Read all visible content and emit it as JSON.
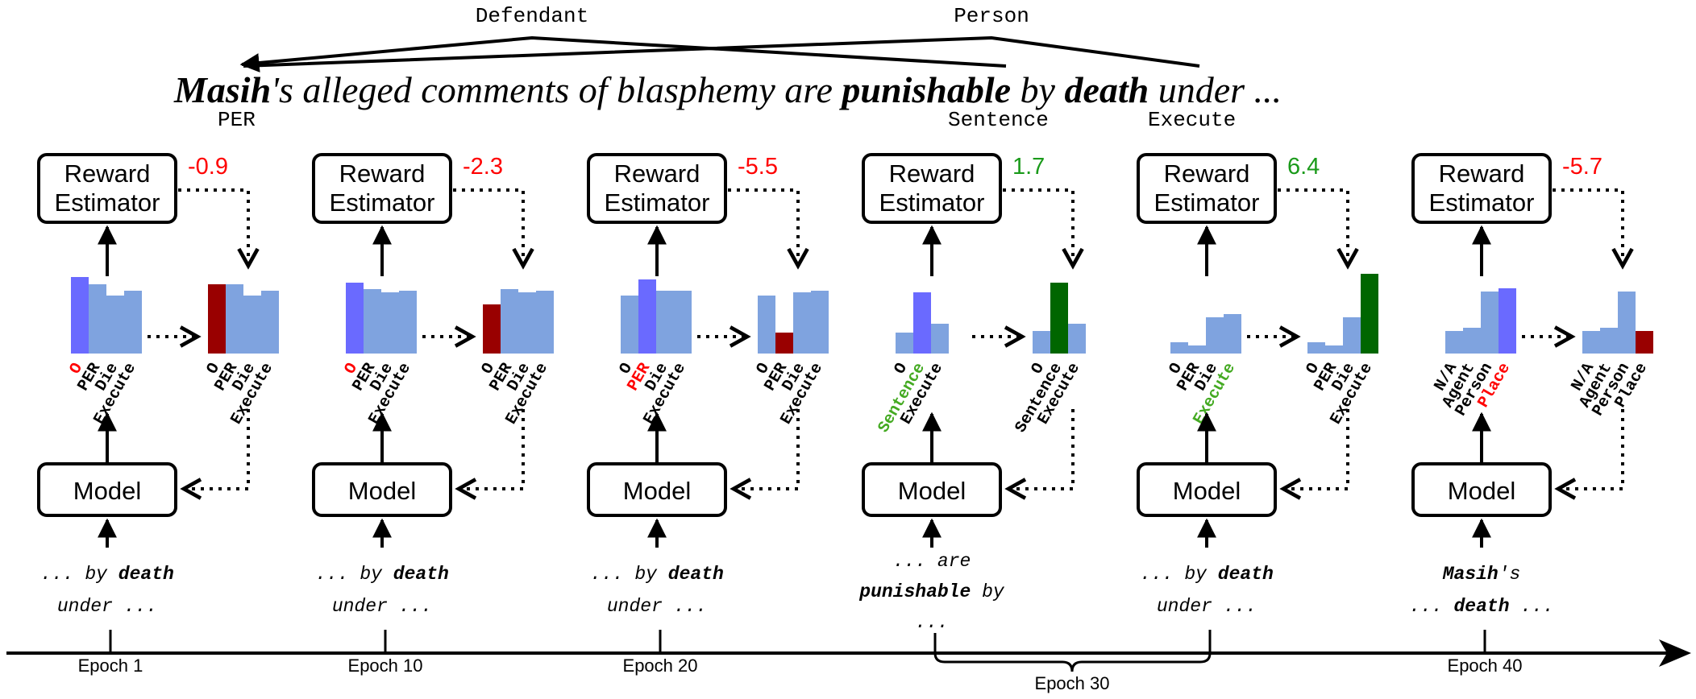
{
  "colors": {
    "bar_default": "#7fa3df",
    "bar_selected": "#6a6aff",
    "bar_negative": "#990000",
    "bar_positive": "#006600",
    "reward_negative": "#ff0000",
    "reward_positive": "#1a9a1a",
    "label_red": "#ff0000",
    "label_green": "#44aa22",
    "ink": "#000000"
  },
  "sentence": {
    "parts": [
      {
        "text": "Masih",
        "style": "bold"
      },
      {
        "text": "'s alleged comments of blasphemy are ",
        "style": "normal"
      },
      {
        "text": "punishable",
        "style": "bold"
      },
      {
        "text": " by ",
        "style": "normal"
      },
      {
        "text": "death",
        "style": "bold"
      },
      {
        "text": " under ...",
        "style": "normal"
      }
    ],
    "arc_labels": [
      "Defendant",
      "Person"
    ],
    "tags": [
      "PER",
      "Sentence",
      "Execute"
    ]
  },
  "panels": [
    {
      "reward": {
        "text": "-0.9",
        "sign": "negative"
      },
      "box_top": "Reward\nEstimator",
      "box_bottom": "Model",
      "left_chart": {
        "values": [
          0.95,
          0.86,
          0.72,
          0.78
        ],
        "labels": [
          "O",
          "PER",
          "Die",
          "Execute"
        ],
        "highlight": 0,
        "highlight_color": "selected",
        "label_colors": [
          "red",
          "ink",
          "ink",
          "ink"
        ]
      },
      "right_chart": {
        "values": [
          0.86,
          0.86,
          0.72,
          0.78
        ],
        "labels": [
          "O",
          "PER",
          "Die",
          "Execute"
        ],
        "highlight": 0,
        "highlight_color": "negative"
      },
      "input_lines": [
        [
          {
            "text": "... by ",
            "style": "italic"
          },
          {
            "text": "death",
            "style": "bold"
          }
        ],
        [
          {
            "text": "under ...",
            "style": "italic"
          }
        ]
      ]
    },
    {
      "reward": {
        "text": "-2.3",
        "sign": "negative"
      },
      "box_top": "Reward\nEstimator",
      "box_bottom": "Model",
      "left_chart": {
        "values": [
          0.88,
          0.8,
          0.76,
          0.78
        ],
        "labels": [
          "O",
          "PER",
          "Die",
          "Execute"
        ],
        "highlight": 0,
        "highlight_color": "selected",
        "label_colors": [
          "red",
          "ink",
          "ink",
          "ink"
        ]
      },
      "right_chart": {
        "values": [
          0.61,
          0.8,
          0.76,
          0.78
        ],
        "labels": [
          "O",
          "PER",
          "Die",
          "Execute"
        ],
        "highlight": 0,
        "highlight_color": "negative"
      },
      "input_lines": [
        [
          {
            "text": "... by ",
            "style": "italic"
          },
          {
            "text": "death",
            "style": "bold"
          }
        ],
        [
          {
            "text": "under ...",
            "style": "italic"
          }
        ]
      ]
    },
    {
      "reward": {
        "text": "-5.5",
        "sign": "negative"
      },
      "box_top": "Reward\nEstimator",
      "box_bottom": "Model",
      "left_chart": {
        "values": [
          0.72,
          0.92,
          0.78,
          0.78
        ],
        "labels": [
          "O",
          "PER",
          "Die",
          "Execute"
        ],
        "highlight": 1,
        "highlight_color": "selected",
        "label_colors": [
          "ink",
          "red",
          "ink",
          "ink"
        ]
      },
      "right_chart": {
        "values": [
          0.72,
          0.26,
          0.76,
          0.78
        ],
        "labels": [
          "O",
          "PER",
          "Die",
          "Execute"
        ],
        "highlight": 1,
        "highlight_color": "negative"
      },
      "input_lines": [
        [
          {
            "text": "... by ",
            "style": "italic"
          },
          {
            "text": "death",
            "style": "bold"
          }
        ],
        [
          {
            "text": "under ...",
            "style": "italic"
          }
        ]
      ]
    },
    {
      "reward": {
        "text": "1.7",
        "sign": "positive"
      },
      "box_top": "Reward\nEstimator",
      "box_bottom": "Model",
      "left_chart": {
        "values": [
          0.26,
          0.76,
          0.37
        ],
        "labels": [
          "O",
          "Sentence",
          "Execute"
        ],
        "highlight": 1,
        "highlight_color": "selected",
        "label_colors": [
          "ink",
          "green",
          "ink"
        ]
      },
      "right_chart": {
        "values": [
          0.28,
          0.88,
          0.37
        ],
        "labels": [
          "O",
          "Sentence",
          "Execute"
        ],
        "highlight": 1,
        "highlight_color": "positive"
      },
      "input_lines": [
        [
          {
            "text": "... are",
            "style": "italic"
          }
        ],
        [
          {
            "text": "punishable",
            "style": "bold"
          },
          {
            "text": " by",
            "style": "italic"
          }
        ],
        [
          {
            "text": "...",
            "style": "italic"
          }
        ]
      ]
    },
    {
      "reward": {
        "text": "6.4",
        "sign": "positive"
      },
      "box_top": "Reward\nEstimator",
      "box_bottom": "Model",
      "left_chart": {
        "values": [
          0.14,
          0.1,
          0.45,
          0.49
        ],
        "labels": [
          "O",
          "PER",
          "Die",
          "Execute"
        ],
        "highlight": null,
        "highlight_color": "selected",
        "label_colors": [
          "ink",
          "ink",
          "ink",
          "green"
        ]
      },
      "right_chart": {
        "values": [
          0.14,
          0.1,
          0.45,
          0.99
        ],
        "labels": [
          "O",
          "PER",
          "Die",
          "Execute"
        ],
        "highlight": 3,
        "highlight_color": "positive"
      },
      "input_lines": [
        [
          {
            "text": "... by ",
            "style": "italic"
          },
          {
            "text": "death",
            "style": "bold"
          }
        ],
        [
          {
            "text": "under ...",
            "style": "italic"
          }
        ]
      ]
    },
    {
      "reward": {
        "text": "-5.7",
        "sign": "negative"
      },
      "box_top": "Reward\nEstimator",
      "box_bottom": "Model",
      "left_chart": {
        "values": [
          0.28,
          0.32,
          0.77,
          0.81
        ],
        "labels": [
          "N/A",
          "Agent",
          "Person",
          "Place"
        ],
        "highlight": 3,
        "highlight_color": "selected",
        "label_colors": [
          "ink",
          "ink",
          "ink",
          "red"
        ]
      },
      "right_chart": {
        "values": [
          0.28,
          0.32,
          0.77,
          0.28
        ],
        "labels": [
          "N/A",
          "Agent",
          "Person",
          "Place"
        ],
        "highlight": 3,
        "highlight_color": "negative"
      },
      "input_lines": [
        [
          {
            "text": "Masih",
            "style": "bold"
          },
          {
            "text": "'s",
            "style": "italic"
          }
        ],
        [
          {
            "text": "... ",
            "style": "italic"
          },
          {
            "text": "death",
            "style": "bold"
          },
          {
            "text": " ...",
            "style": "italic"
          }
        ]
      ]
    }
  ],
  "timeline": {
    "labels": [
      "Epoch 1",
      "Epoch 10",
      "Epoch 20",
      "Epoch 30",
      "Epoch 40"
    ]
  }
}
